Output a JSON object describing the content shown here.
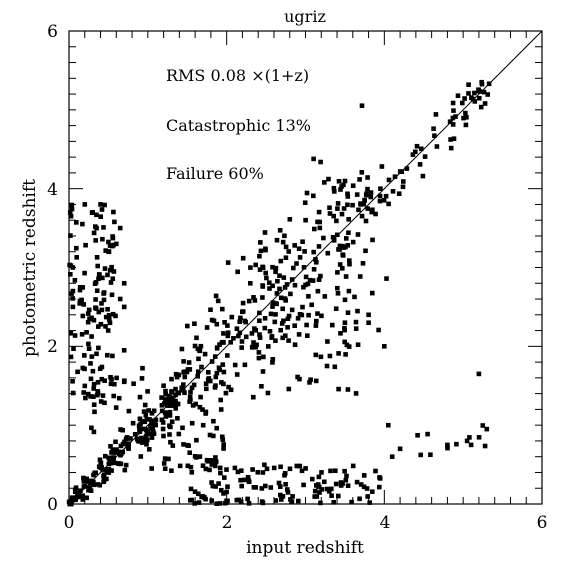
{
  "chart_data": {
    "type": "scatter",
    "title": "ugriz",
    "xlabel": "input redshift",
    "ylabel": "photometric redshift",
    "xlim": [
      0,
      6
    ],
    "ylim": [
      0,
      6
    ],
    "xticks": [
      "0",
      "2",
      "4",
      "6"
    ],
    "yticks": [
      "0",
      "2",
      "4",
      "6"
    ],
    "grid": false,
    "legend": "none",
    "annotations": [
      "RMS 0.08 ×(1+z)",
      "Catastrophic 13%",
      "Failure 60%"
    ],
    "reference_line": {
      "from": [
        0,
        0
      ],
      "to": [
        6,
        6
      ]
    },
    "marker_color": "#000000",
    "seed": 20240611,
    "clusters": [
      {
        "x": [
          0.0,
          0.45
        ],
        "y_func": "identity",
        "scatter": 0.12,
        "n": 55,
        "ymin": 0.0,
        "ymax": 0.7
      },
      {
        "x": [
          0.45,
          1.4
        ],
        "y_func": "identity",
        "scatter": 0.12,
        "n": 140
      },
      {
        "x": [
          1.4,
          2.5
        ],
        "y_func": "identity",
        "scatter": 0.28,
        "n": 150
      },
      {
        "x": [
          2.5,
          3.8
        ],
        "y_func": "identity",
        "scatter": 0.22,
        "n": 150
      },
      {
        "x": [
          3.5,
          5.35
        ],
        "y_func": "identity",
        "scatter": 0.06,
        "n": 70
      },
      {
        "x": [
          0.0,
          0.6
        ],
        "y": [
          1.3,
          3.8
        ],
        "n": 130
      },
      {
        "x": [
          0.2,
          1.0
        ],
        "y": [
          0.9,
          1.8
        ],
        "n": 25
      },
      {
        "x": [
          1.0,
          2.0
        ],
        "y": [
          0.4,
          0.9
        ],
        "n": 35
      },
      {
        "x": [
          1.5,
          4.0
        ],
        "y": [
          0.0,
          0.5
        ],
        "n": 130
      },
      {
        "x": [
          2.4,
          3.7
        ],
        "y": [
          1.4,
          2.4
        ],
        "n": 45
      },
      {
        "x": [
          3.3,
          4.1
        ],
        "y": [
          2.2,
          3.4
        ],
        "n": 10
      },
      {
        "x": [
          3.9,
          5.4
        ],
        "y": [
          0.5,
          1.0
        ],
        "n": 10
      }
    ],
    "points": [
      [
        0.05,
        3.0
      ],
      [
        0.05,
        2.7
      ],
      [
        0.05,
        2.5
      ],
      [
        0.2,
        3.8
      ],
      [
        0.3,
        3.7
      ],
      [
        0.4,
        3.8
      ],
      [
        0.35,
        3.5
      ],
      [
        0.65,
        3.5
      ],
      [
        0.6,
        3.3
      ],
      [
        0.7,
        2.8
      ],
      [
        0.65,
        2.6
      ],
      [
        0.7,
        2.5
      ],
      [
        0.7,
        1.95
      ],
      [
        0.7,
        1.55
      ],
      [
        4.05,
        1.0
      ],
      [
        4.2,
        0.7
      ],
      [
        4.1,
        0.6
      ],
      [
        4.8,
        0.75
      ],
      [
        5.05,
        0.8
      ],
      [
        5.1,
        0.75
      ],
      [
        5.3,
        0.95
      ],
      [
        5.2,
        1.65
      ],
      [
        4.0,
        2.0
      ],
      [
        3.8,
        2.3
      ],
      [
        3.8,
        2.4
      ],
      [
        3.55,
        2.7
      ],
      [
        3.5,
        2.3
      ],
      [
        3.85,
        3.35
      ],
      [
        3.7,
        3.8
      ],
      [
        3.75,
        3.85
      ],
      [
        3.95,
        4.0
      ],
      [
        1.2,
        1.5
      ],
      [
        1.3,
        1.3
      ]
    ]
  }
}
